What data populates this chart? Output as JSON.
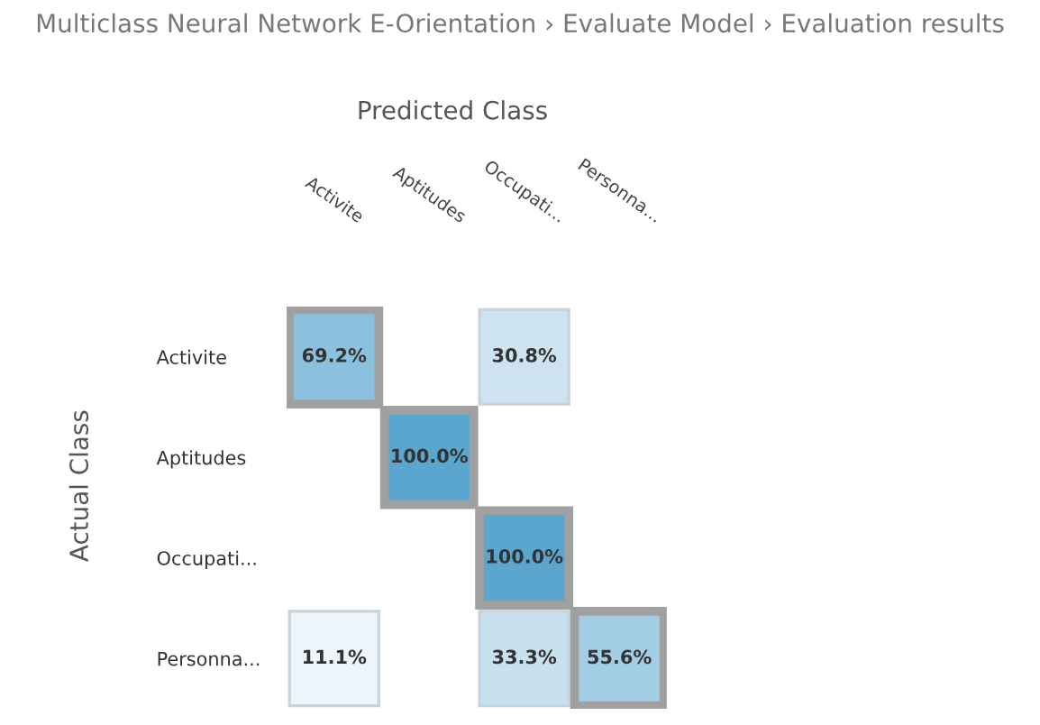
{
  "chart_data": {
    "type": "heatmap",
    "title": "Multiclass Neural Network E-Orientation › Evaluate Model › Evaluation results",
    "xlabel": "Predicted Class",
    "ylabel": "Actual Class",
    "categories": [
      "Activite",
      "Aptitudes",
      "Occupati...",
      "Personna..."
    ],
    "y_categories": [
      "Activite",
      "Aptitudes",
      "Occupati...",
      "Personna..."
    ],
    "cells": [
      [
        69.2,
        null,
        30.8,
        null
      ],
      [
        null,
        100.0,
        null,
        null
      ],
      [
        null,
        null,
        100.0,
        null
      ],
      [
        11.1,
        null,
        33.3,
        55.6
      ]
    ],
    "cell_labels": [
      [
        "69.2%",
        null,
        "30.8%",
        null
      ],
      [
        null,
        "100.0%",
        null,
        null
      ],
      [
        null,
        null,
        "100.0%",
        null
      ],
      [
        "11.1%",
        null,
        "33.3%",
        "55.6%"
      ]
    ]
  }
}
